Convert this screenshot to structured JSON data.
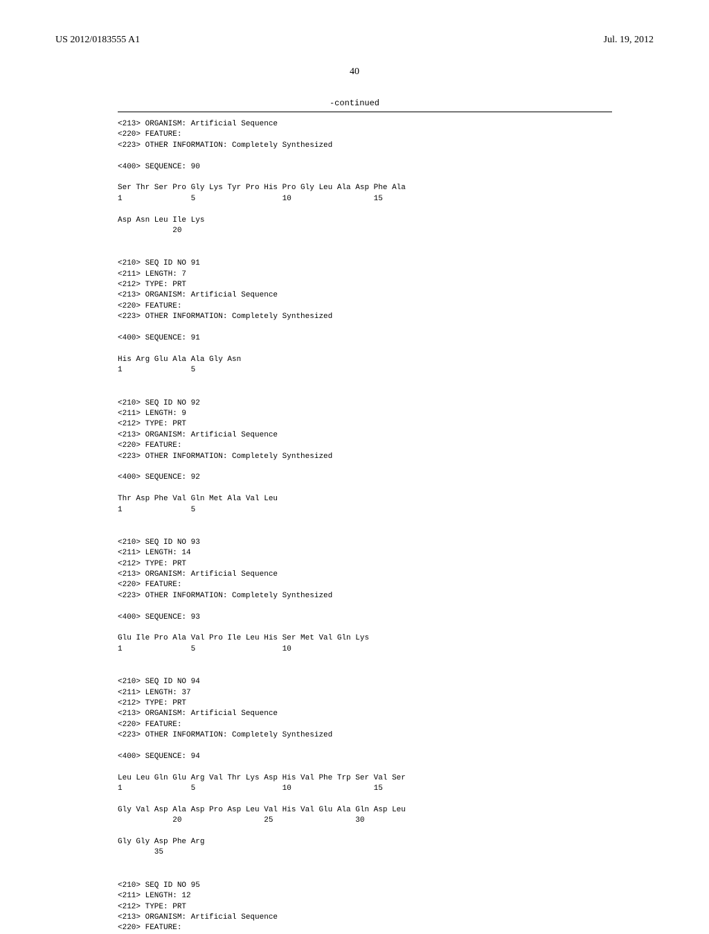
{
  "header": {
    "publication_number": "US 2012/0183555 A1",
    "date": "Jul. 19, 2012"
  },
  "page_number": "40",
  "continued_label": "-continued",
  "sequences": [
    {
      "meta": [
        "<213> ORGANISM: Artificial Sequence",
        "<220> FEATURE:",
        "<223> OTHER INFORMATION: Completely Synthesized"
      ],
      "seq_line": "<400> SEQUENCE: 90",
      "residues": [
        {
          "line": "Ser Thr Ser Pro Gly Lys Tyr Pro His Pro Gly Leu Ala Asp Phe Ala",
          "nums": "1               5                   10                  15"
        },
        {
          "line": "Asp Asn Leu Ile Lys",
          "nums": "            20"
        }
      ]
    },
    {
      "meta": [
        "<210> SEQ ID NO 91",
        "<211> LENGTH: 7",
        "<212> TYPE: PRT",
        "<213> ORGANISM: Artificial Sequence",
        "<220> FEATURE:",
        "<223> OTHER INFORMATION: Completely Synthesized"
      ],
      "seq_line": "<400> SEQUENCE: 91",
      "residues": [
        {
          "line": "His Arg Glu Ala Ala Gly Asn",
          "nums": "1               5"
        }
      ]
    },
    {
      "meta": [
        "<210> SEQ ID NO 92",
        "<211> LENGTH: 9",
        "<212> TYPE: PRT",
        "<213> ORGANISM: Artificial Sequence",
        "<220> FEATURE:",
        "<223> OTHER INFORMATION: Completely Synthesized"
      ],
      "seq_line": "<400> SEQUENCE: 92",
      "residues": [
        {
          "line": "Thr Asp Phe Val Gln Met Ala Val Leu",
          "nums": "1               5"
        }
      ]
    },
    {
      "meta": [
        "<210> SEQ ID NO 93",
        "<211> LENGTH: 14",
        "<212> TYPE: PRT",
        "<213> ORGANISM: Artificial Sequence",
        "<220> FEATURE:",
        "<223> OTHER INFORMATION: Completely Synthesized"
      ],
      "seq_line": "<400> SEQUENCE: 93",
      "residues": [
        {
          "line": "Glu Ile Pro Ala Val Pro Ile Leu His Ser Met Val Gln Lys",
          "nums": "1               5                   10"
        }
      ]
    },
    {
      "meta": [
        "<210> SEQ ID NO 94",
        "<211> LENGTH: 37",
        "<212> TYPE: PRT",
        "<213> ORGANISM: Artificial Sequence",
        "<220> FEATURE:",
        "<223> OTHER INFORMATION: Completely Synthesized"
      ],
      "seq_line": "<400> SEQUENCE: 94",
      "residues": [
        {
          "line": "Leu Leu Gln Glu Arg Val Thr Lys Asp His Val Phe Trp Ser Val Ser",
          "nums": "1               5                   10                  15"
        },
        {
          "line": "Gly Val Asp Ala Asp Pro Asp Leu Val His Val Glu Ala Gln Asp Leu",
          "nums": "            20                  25                  30"
        },
        {
          "line": "Gly Gly Asp Phe Arg",
          "nums": "        35"
        }
      ]
    },
    {
      "meta": [
        "<210> SEQ ID NO 95",
        "<211> LENGTH: 12",
        "<212> TYPE: PRT",
        "<213> ORGANISM: Artificial Sequence",
        "<220> FEATURE:"
      ],
      "seq_line": null,
      "residues": []
    }
  ]
}
